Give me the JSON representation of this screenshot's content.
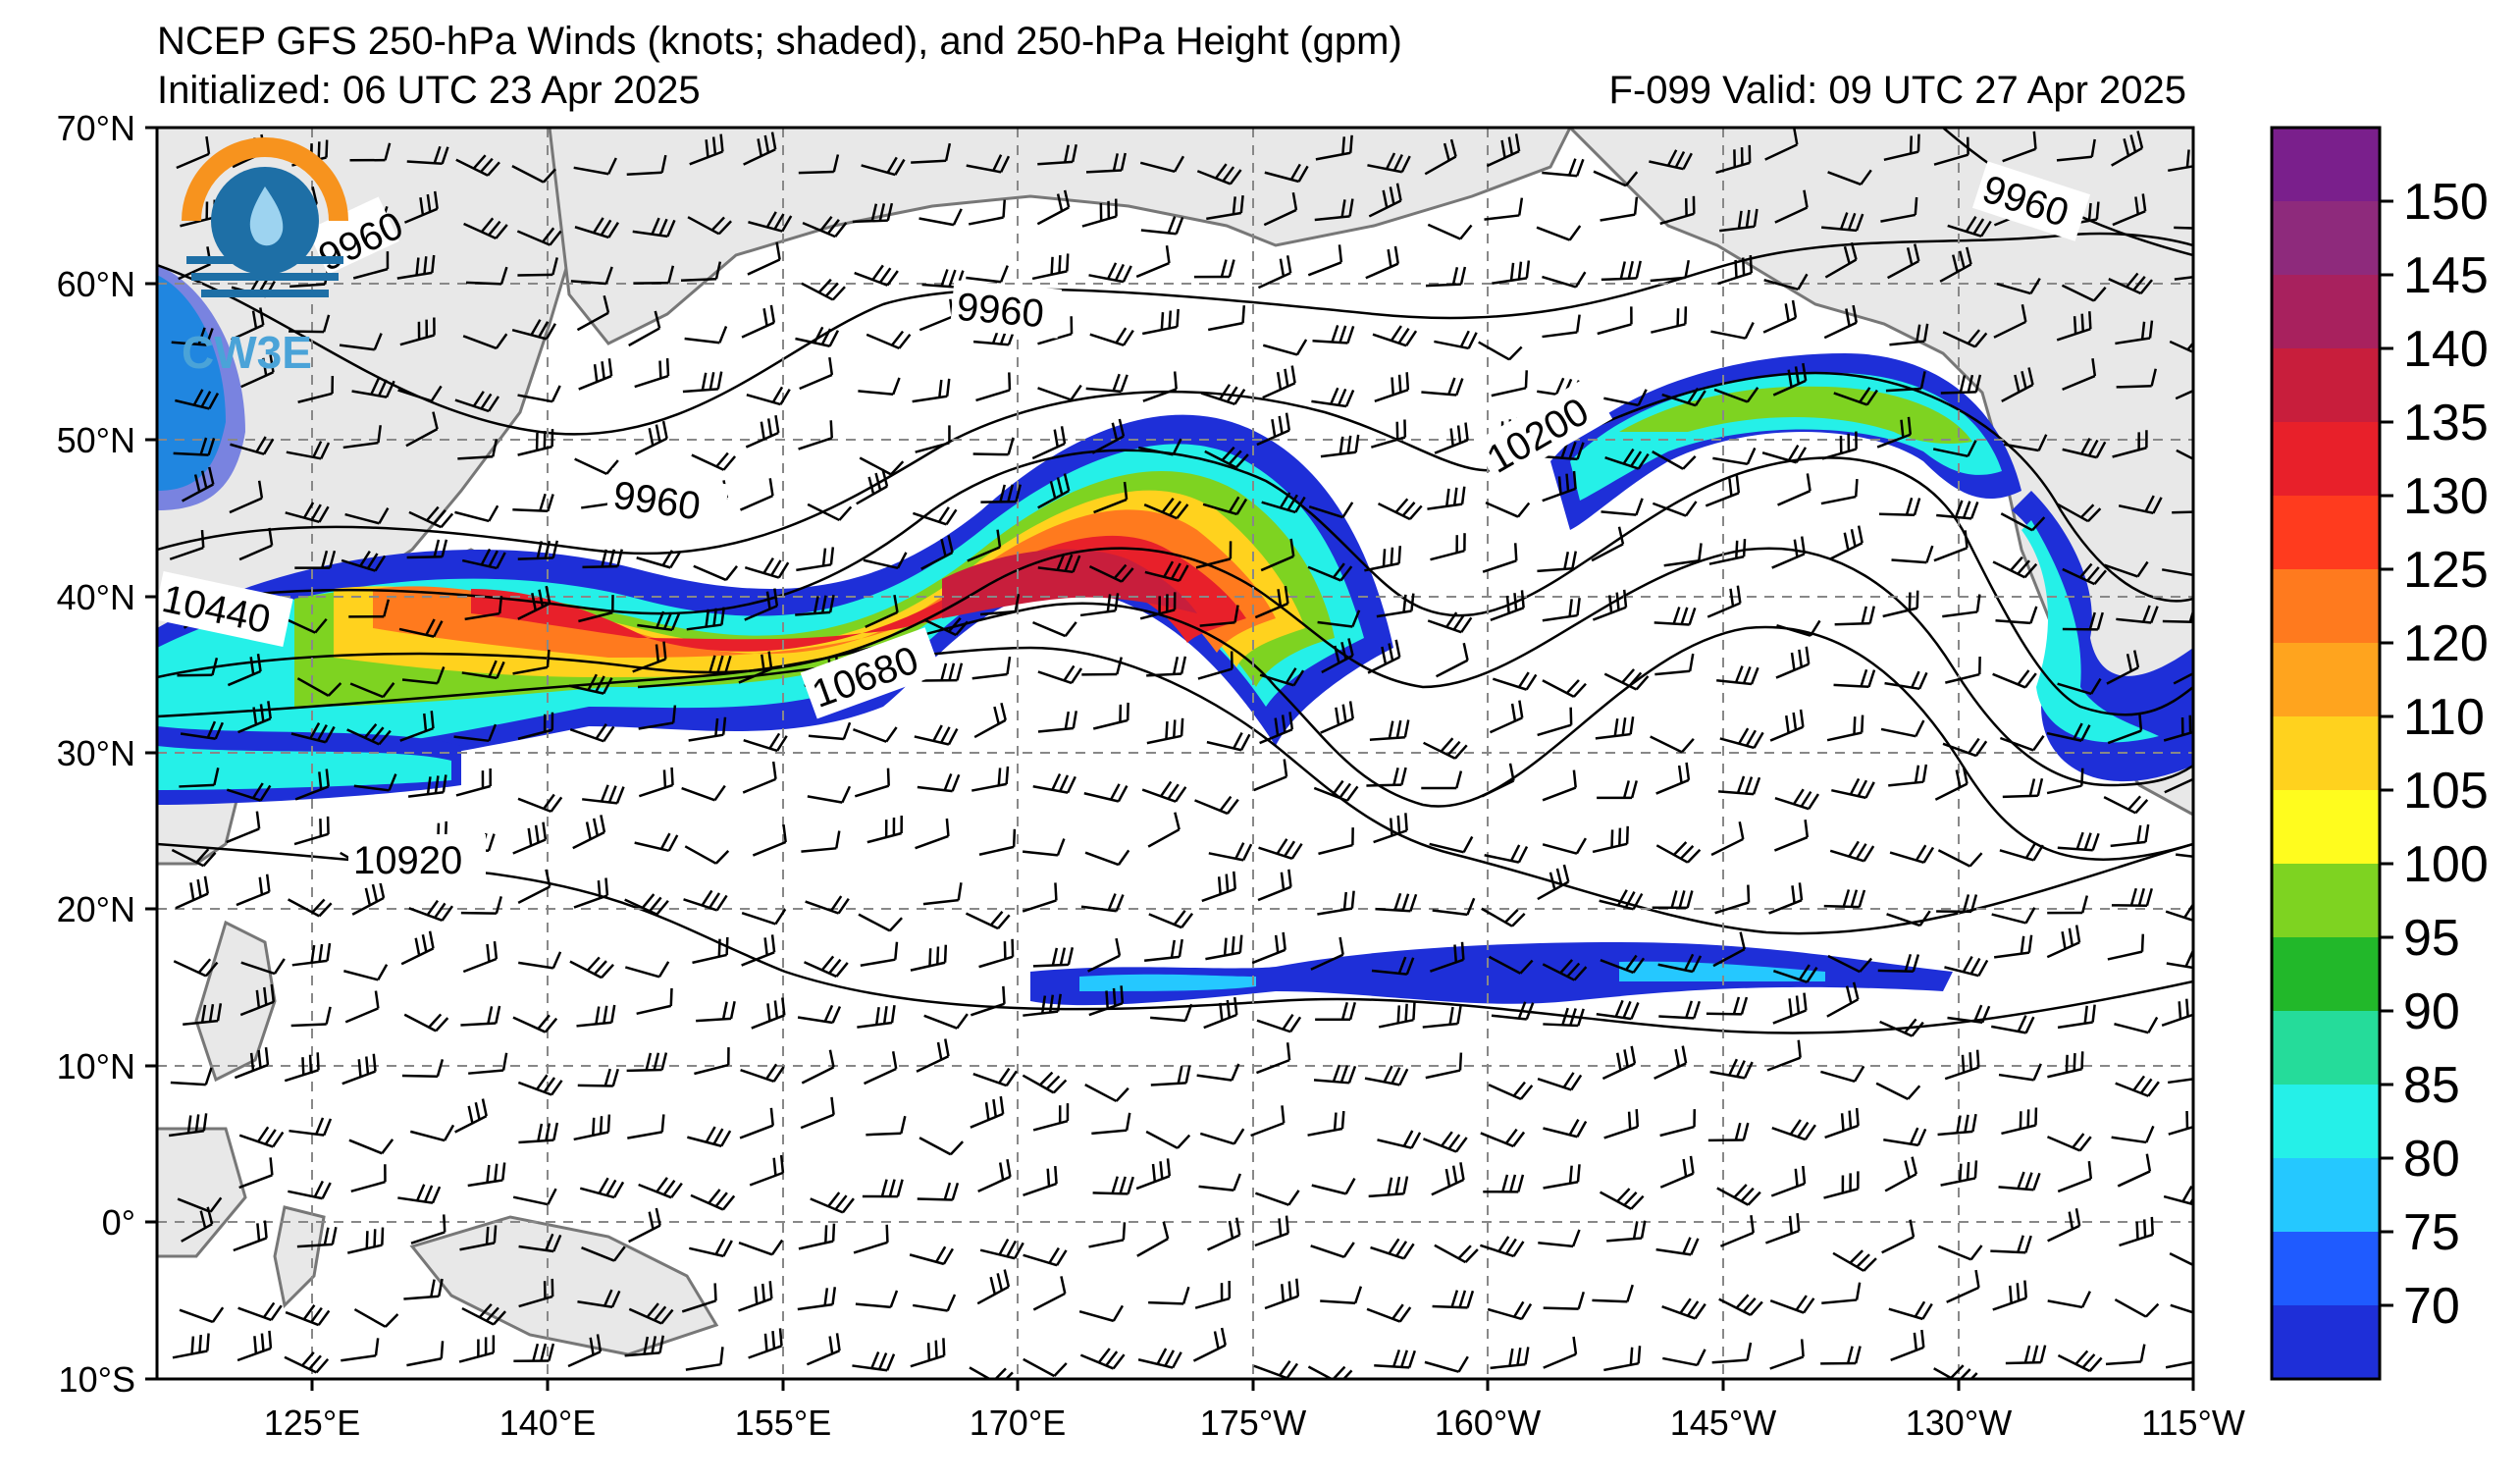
{
  "header": {
    "title": "NCEP GFS 250-hPa Winds (knots; shaded), and 250-hPa Height (gpm)",
    "initialized": "Initialized: 06 UTC 23 Apr 2025",
    "valid": "F-099  Valid: 09 UTC 27 Apr 2025"
  },
  "logo": {
    "text": "CW3E",
    "icon": "cw3e-logo-icon"
  },
  "axes": {
    "lat_labels": [
      "70°N",
      "60°N",
      "50°N",
      "40°N",
      "30°N",
      "20°N",
      "10°N",
      "0°",
      "10°S"
    ],
    "lon_labels": [
      "125°E",
      "140°E",
      "155°E",
      "170°E",
      "175°W",
      "160°W",
      "145°W",
      "130°W",
      "115°W"
    ]
  },
  "contour_labels": [
    "9960",
    "9960",
    "9960",
    "9960",
    "10200",
    "10440",
    "10680",
    "10920"
  ],
  "colorbar": {
    "ticks": [
      "150",
      "145",
      "140",
      "135",
      "130",
      "125",
      "120",
      "110",
      "105",
      "100",
      "95",
      "90",
      "85",
      "80",
      "75",
      "70"
    ],
    "colors": [
      "#7a1f8c",
      "#8e2a7c",
      "#a8215e",
      "#c81e3c",
      "#e8202a",
      "#ff3b1e",
      "#ff7a1e",
      "#ffa41e",
      "#ffd21e",
      "#fffc1e",
      "#7ed321",
      "#22b82a",
      "#25dc9a",
      "#25f0e8",
      "#25c8ff",
      "#1f5bff",
      "#1e2fd8"
    ]
  },
  "colors": {
    "land": "#e8e8e8",
    "coast": "#777777",
    "grid": "#888888"
  }
}
